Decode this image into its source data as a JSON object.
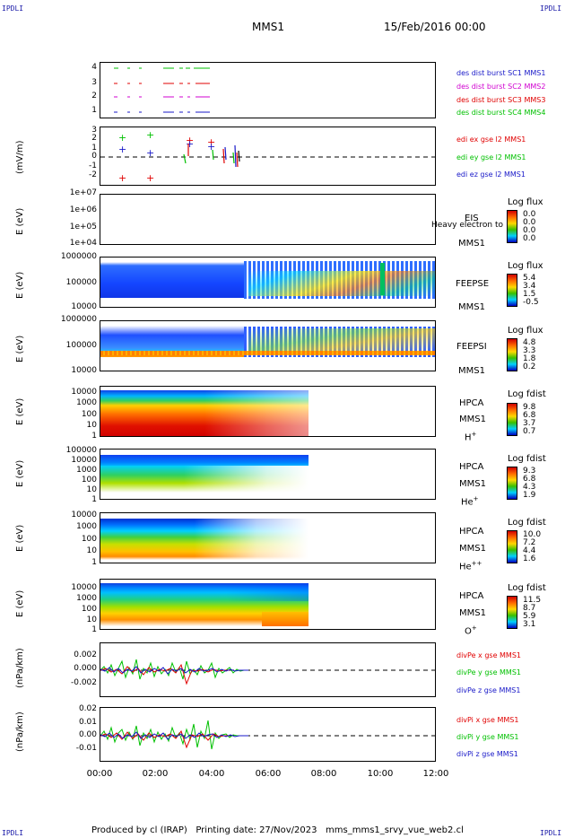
{
  "corners": {
    "tl": "IPDLI",
    "tr": "IPDLI",
    "bl": "IPDLI",
    "br": "IPDLI"
  },
  "header": {
    "spacecraft": "MMS1",
    "date": "15/Feb/2016 00:00"
  },
  "footer": "Produced by cl (IRAP)   Printing date: 27/Nov/2023   mms_mms1_srvy_vue_web2.cl",
  "chart_data": {
    "type": "multi-panel time series",
    "x_axis": {
      "ticks": [
        "00:00",
        "02:00",
        "04:00",
        "06:00",
        "08:00",
        "10:00",
        "12:00"
      ],
      "range_hours": [
        0,
        12
      ]
    },
    "panels": [
      {
        "id": "burst",
        "yticks": [
          "4",
          "3",
          "2",
          "1"
        ],
        "legend": [
          {
            "label": "des dist burst SC1 MMS1",
            "color": "#1818c8"
          },
          {
            "label": "des dist burst SC2 MMS2",
            "color": "#d000d0"
          },
          {
            "label": "des dist burst SC3 MMS3",
            "color": "#e00000"
          },
          {
            "label": "des dist burst SC4 MMS4",
            "color": "#00c000"
          }
        ]
      },
      {
        "id": "edi",
        "ylabel": "(mV/m)",
        "yticks": [
          "3",
          "2",
          "1",
          "0",
          "-1",
          "-2"
        ],
        "legend": [
          {
            "label": "edi ex gse l2 MMS1",
            "color": "#e00000"
          },
          {
            "label": "edi ey gse l2 MMS1",
            "color": "#00c000"
          },
          {
            "label": "edi ez gse l2 MMS1",
            "color": "#1818c8"
          }
        ]
      },
      {
        "id": "eis",
        "ylabel": "E (eV)",
        "yticks": [
          "1e+07",
          "1e+06",
          "1e+05",
          "1e+04"
        ],
        "name": "EIS",
        "sc": "MMS1",
        "extra": "Heavy electron to",
        "cbtitle": "Log flux",
        "cbticks": [
          "0.0",
          "0.0",
          "0.0",
          "0.0"
        ]
      },
      {
        "id": "feepse",
        "ylabel": "E (eV)",
        "yticks": [
          "1000000",
          "100000",
          "10000"
        ],
        "name": "FEEPSE",
        "sc": "MMS1",
        "cbtitle": "Log flux",
        "cbticks": [
          "5.4",
          "3.4",
          "1.5",
          "-0.5"
        ]
      },
      {
        "id": "feepsi",
        "ylabel": "E (eV)",
        "yticks": [
          "1000000",
          "100000",
          "10000"
        ],
        "name": "FEEPSI",
        "sc": "MMS1",
        "cbtitle": "Log flux",
        "cbticks": [
          "4.8",
          "3.3",
          "1.8",
          "0.2"
        ]
      },
      {
        "id": "hpca_h",
        "ylabel": "E (eV)",
        "yticks": [
          "10000",
          "1000",
          "100",
          "10",
          "1"
        ],
        "name": "HPCA",
        "sc": "MMS1",
        "species": "H",
        "sup": "+",
        "cbtitle": "Log fdist",
        "cbticks": [
          "9.8",
          "6.8",
          "3.7",
          "0.7"
        ]
      },
      {
        "id": "hpca_he",
        "ylabel": "E (eV)",
        "yticks": [
          "100000",
          "10000",
          "1000",
          "100",
          "10",
          "1"
        ],
        "name": "HPCA",
        "sc": "MMS1",
        "species": "He",
        "sup": "+",
        "cbtitle": "Log fdist",
        "cbticks": [
          "9.3",
          "6.8",
          "4.3",
          "1.9"
        ]
      },
      {
        "id": "hpca_hepp",
        "ylabel": "E (eV)",
        "yticks": [
          "10000",
          "1000",
          "100",
          "10",
          "1"
        ],
        "name": "HPCA",
        "sc": "MMS1",
        "species": "He",
        "sup": "++",
        "cbtitle": "Log fdist",
        "cbticks": [
          "10.0",
          "7.2",
          "4.4",
          "1.6"
        ]
      },
      {
        "id": "hpca_o",
        "ylabel": "E (eV)",
        "yticks": [
          "10000",
          "1000",
          "100",
          "10",
          "1"
        ],
        "name": "HPCA",
        "sc": "MMS1",
        "species": "O",
        "sup": "+",
        "cbtitle": "Log fdist",
        "cbticks": [
          "11.5",
          "8.7",
          "5.9",
          "3.1"
        ]
      },
      {
        "id": "divpe",
        "ylabel": "(nPa/km)",
        "yticks": [
          "0.002",
          "0.000",
          "-0.002"
        ],
        "legend": [
          {
            "label": "divPe x gse MMS1",
            "color": "#e00000"
          },
          {
            "label": "divPe y gse MMS1",
            "color": "#00c000"
          },
          {
            "label": "divPe z gse MMS1",
            "color": "#1818c8"
          }
        ]
      },
      {
        "id": "divpi",
        "ylabel": "(nPa/km)",
        "yticks": [
          "0.02",
          "0.01",
          "0.00",
          "-0.01"
        ],
        "legend": [
          {
            "label": "divPi x gse MMS1",
            "color": "#e00000"
          },
          {
            "label": "divPi y gse MMS1",
            "color": "#00c000"
          },
          {
            "label": "divPi z gse MMS1",
            "color": "#1818c8"
          }
        ]
      }
    ]
  }
}
